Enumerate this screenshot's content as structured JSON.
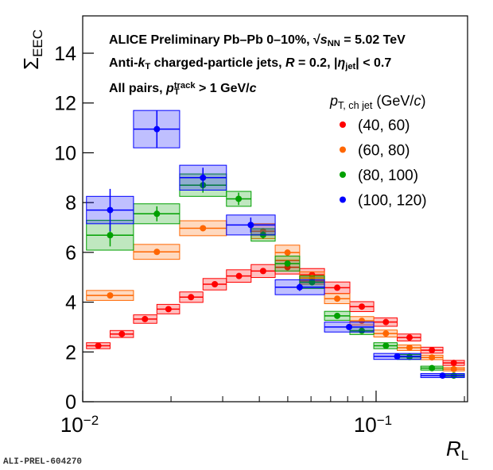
{
  "chart_data": {
    "type": "scatter",
    "xlabel": {
      "text": "R",
      "sub": "L"
    },
    "ylabel": {
      "text": "Σ",
      "sub": "EEC"
    },
    "xlog": true,
    "xlim": [
      0.01,
      0.205
    ],
    "ylim": [
      0,
      15.5
    ],
    "xticks": [
      {
        "value": 0.01,
        "label": "10",
        "exponent": "−2"
      },
      {
        "value": 0.1,
        "label": "10",
        "exponent": "−1"
      }
    ],
    "xminorticks": [
      0.02,
      0.03,
      0.04,
      0.05,
      0.06,
      0.07,
      0.08,
      0.09,
      0.2
    ],
    "yticks": [
      0,
      2,
      4,
      6,
      8,
      10,
      12,
      14
    ],
    "annotations": [
      [
        {
          "text": "ALICE Preliminary  Pb–Pb 0–10%,  √"
        },
        {
          "text": "s",
          "style": "italic"
        },
        {
          "text": "NN",
          "style": "sub"
        },
        {
          "text": " = 5.02 TeV"
        }
      ],
      [
        {
          "text": "Anti-"
        },
        {
          "text": "k",
          "style": "italic"
        },
        {
          "text": "T",
          "style": "sub"
        },
        {
          "text": " charged-particle jets,  "
        },
        {
          "text": "R",
          "style": "italic"
        },
        {
          "text": " = 0.2, |"
        },
        {
          "text": "η",
          "style": "italic"
        },
        {
          "text": "jet",
          "style": "sub"
        },
        {
          "text": "| < 0.7"
        }
      ],
      [
        {
          "text": "All pairs,   "
        },
        {
          "text": "p",
          "style": "italic"
        },
        {
          "text": "T",
          "style": "sub"
        },
        {
          "text": "track",
          "style": "sup"
        },
        {
          "text": " > 1 GeV/"
        },
        {
          "text": "c",
          "style": "italic"
        }
      ]
    ],
    "legend_title": [
      {
        "text": "p",
        "style": "italic"
      },
      {
        "text": "T, ch jet",
        "style": "sub"
      },
      {
        "text": " (GeV/"
      },
      {
        "text": "c",
        "style": "italic"
      },
      {
        "text": ")"
      }
    ],
    "footer": "ALI-PREL-604270",
    "series": [
      {
        "name": "(40, 60)",
        "color": "#ff0000",
        "x": [
          0.0113,
          0.0136,
          0.0163,
          0.0196,
          0.0234,
          0.0282,
          0.0341,
          0.0412,
          0.0499,
          0.0605,
          0.0737,
          0.0894,
          0.108,
          0.13,
          0.155,
          0.184
        ],
        "x_lo": [
          0.0103,
          0.0124,
          0.0149,
          0.0179,
          0.0214,
          0.0257,
          0.0309,
          0.0375,
          0.0453,
          0.0549,
          0.0667,
          0.0814,
          0.0982,
          0.118,
          0.142,
          0.169
        ],
        "x_hi": [
          0.0124,
          0.0149,
          0.0179,
          0.0214,
          0.0257,
          0.0309,
          0.0375,
          0.0453,
          0.0549,
          0.0667,
          0.0814,
          0.0982,
          0.118,
          0.142,
          0.169,
          0.2
        ],
        "values": [
          2.25,
          2.72,
          3.32,
          3.72,
          4.2,
          4.72,
          5.05,
          5.25,
          5.4,
          5.1,
          4.58,
          3.82,
          3.2,
          2.58,
          2.07,
          1.56
        ],
        "yerr": [
          0.05,
          0.05,
          0.05,
          0.05,
          0.05,
          0.05,
          0.05,
          0.05,
          0.05,
          0.05,
          0.05,
          0.05,
          0.05,
          0.05,
          0.05,
          0.05
        ],
        "ysyst": [
          0.12,
          0.14,
          0.17,
          0.19,
          0.21,
          0.23,
          0.25,
          0.26,
          0.27,
          0.25,
          0.23,
          0.2,
          0.17,
          0.14,
          0.12,
          0.1
        ]
      },
      {
        "name": "(60, 80)",
        "color": "#ff6600",
        "x": [
          0.0124,
          0.0179,
          0.0257,
          0.0412,
          0.0499,
          0.0605,
          0.0737,
          0.0894,
          0.108,
          0.13,
          0.155,
          0.184
        ],
        "x_lo": [
          0.0103,
          0.0149,
          0.0214,
          0.0375,
          0.0453,
          0.0549,
          0.0667,
          0.0814,
          0.0982,
          0.118,
          0.142,
          0.169
        ],
        "x_hi": [
          0.0149,
          0.0214,
          0.0309,
          0.0453,
          0.0549,
          0.0667,
          0.0814,
          0.0982,
          0.118,
          0.142,
          0.169,
          0.2
        ],
        "values": [
          4.27,
          6.02,
          6.97,
          6.85,
          5.99,
          4.97,
          4.14,
          3.25,
          2.74,
          2.17,
          1.78,
          1.31
        ],
        "yerr": [
          0.1,
          0.1,
          0.1,
          0.08,
          0.06,
          0.06,
          0.05,
          0.05,
          0.05,
          0.05,
          0.05,
          0.05
        ],
        "ysyst": [
          0.2,
          0.3,
          0.3,
          0.3,
          0.3,
          0.25,
          0.2,
          0.17,
          0.14,
          0.11,
          0.09,
          0.07
        ]
      },
      {
        "name": "(80, 100)",
        "color": "#00a000",
        "x": [
          0.0124,
          0.0179,
          0.0257,
          0.034,
          0.0412,
          0.0499,
          0.0605,
          0.0737,
          0.0894,
          0.108,
          0.13,
          0.155,
          0.184
        ],
        "x_lo": [
          0.0103,
          0.0149,
          0.0214,
          0.0309,
          0.0375,
          0.0453,
          0.0549,
          0.0667,
          0.0814,
          0.0982,
          0.118,
          0.142,
          0.169
        ],
        "x_hi": [
          0.0149,
          0.0214,
          0.0309,
          0.0375,
          0.0453,
          0.0549,
          0.0667,
          0.0814,
          0.0982,
          0.118,
          0.142,
          0.169,
          0.2
        ],
        "values": [
          6.69,
          7.55,
          8.7,
          8.15,
          6.7,
          5.55,
          4.8,
          3.45,
          2.85,
          2.25,
          1.8,
          1.35,
          1.05
        ],
        "yerr": [
          0.45,
          0.3,
          0.3,
          0.25,
          0.15,
          0.1,
          0.08,
          0.07,
          0.06,
          0.06,
          0.05,
          0.05,
          0.05
        ],
        "ysyst": [
          0.6,
          0.4,
          0.45,
          0.3,
          0.25,
          0.3,
          0.25,
          0.18,
          0.15,
          0.12,
          0.1,
          0.08,
          0.06
        ]
      },
      {
        "name": "(100, 120)",
        "color": "#0000ff",
        "x": [
          0.0124,
          0.0179,
          0.0257,
          0.0374,
          0.0549,
          0.0809,
          0.118,
          0.1685
        ],
        "x_lo": [
          0.0103,
          0.0149,
          0.0214,
          0.0309,
          0.0453,
          0.0667,
          0.0982,
          0.142
        ],
        "x_hi": [
          0.0149,
          0.0214,
          0.0309,
          0.0453,
          0.0667,
          0.0982,
          0.142,
          0.2
        ],
        "values": [
          7.7,
          10.95,
          9.0,
          7.1,
          4.6,
          3.0,
          1.82,
          1.05
        ],
        "yerr": [
          0.85,
          0.75,
          0.4,
          0.3,
          0.15,
          0.1,
          0.07,
          0.05
        ],
        "ysyst": [
          0.55,
          0.75,
          0.5,
          0.4,
          0.3,
          0.2,
          0.12,
          0.08
        ]
      }
    ]
  }
}
